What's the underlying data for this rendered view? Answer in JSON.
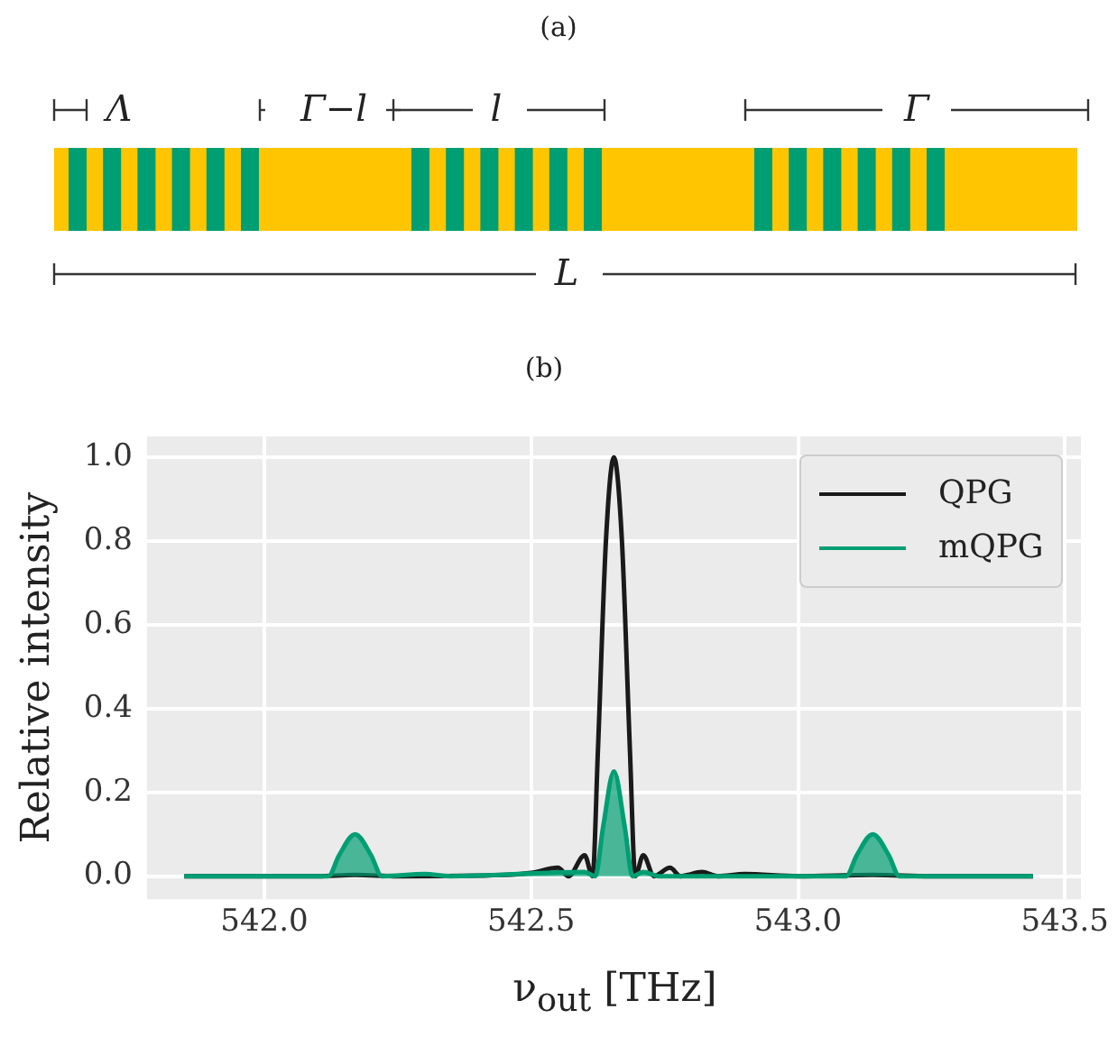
{
  "chart_data": [
    {
      "type": "other",
      "title": "(a)",
      "annotations": [
        "Λ",
        "Γ−l",
        "l",
        "Γ",
        "L"
      ]
    },
    {
      "type": "line",
      "title": "(b)",
      "xlabel": "ν$_{out}$ [THz]",
      "ylabel": "Relative intensity",
      "xlim": [
        541.78,
        543.53
      ],
      "ylim": [
        -0.055,
        1.05
      ],
      "xticks": [
        {
          "value": 542,
          "label": "542.0"
        },
        542.5,
        {
          "value": 543,
          "label": "543.0"
        },
        543.5
      ],
      "yticks": [
        {
          "value": 0,
          "label": "0.0"
        },
        {
          "value": 0.2,
          "label": "0.2"
        },
        {
          "value": 0.4,
          "label": "0.4"
        },
        {
          "value": 0.6,
          "label": "0.6"
        },
        {
          "value": 0.8,
          "label": "0.8"
        },
        {
          "value": 1,
          "label": "1.0"
        }
      ],
      "grid": true,
      "legend": "top right",
      "marker": "none",
      "line_style": "solid",
      "series": [
        {
          "name": "QPG",
          "type": "line",
          "color": "#1a1a1a",
          "x": [
            541.85,
            542.1,
            542.17,
            542.25,
            542.45,
            542.5,
            542.55,
            542.57,
            542.6,
            542.615,
            542.625,
            542.64,
            542.655,
            542.67,
            542.685,
            542.695,
            542.71,
            542.73,
            542.76,
            542.78,
            542.82,
            542.85,
            542.9,
            543.0,
            543.14,
            543.25,
            543.44
          ],
          "values": [
            0,
            0,
            0.003,
            0,
            0.003,
            0.008,
            0.02,
            0,
            0.05,
            0,
            0.3,
            0.8,
            1.0,
            0.8,
            0.3,
            0,
            0.05,
            0,
            0.02,
            0,
            0.01,
            0,
            0.005,
            0,
            0.003,
            0,
            0
          ]
        },
        {
          "name": "mQPG",
          "type": "area",
          "color": "#009e73",
          "x": [
            541.85,
            542.12,
            542.14,
            542.17,
            542.2,
            542.22,
            542.3,
            542.35,
            542.6,
            542.62,
            542.635,
            542.655,
            542.675,
            542.69,
            542.71,
            542.74,
            543.09,
            543.11,
            543.14,
            543.17,
            543.19,
            543.44
          ],
          "values": [
            0,
            0,
            0.05,
            0.1,
            0.05,
            0,
            0.005,
            0,
            0.01,
            0,
            0.12,
            0.25,
            0.12,
            0,
            0.01,
            0,
            0,
            0.05,
            0.1,
            0.05,
            0,
            0
          ]
        }
      ]
    }
  ]
}
